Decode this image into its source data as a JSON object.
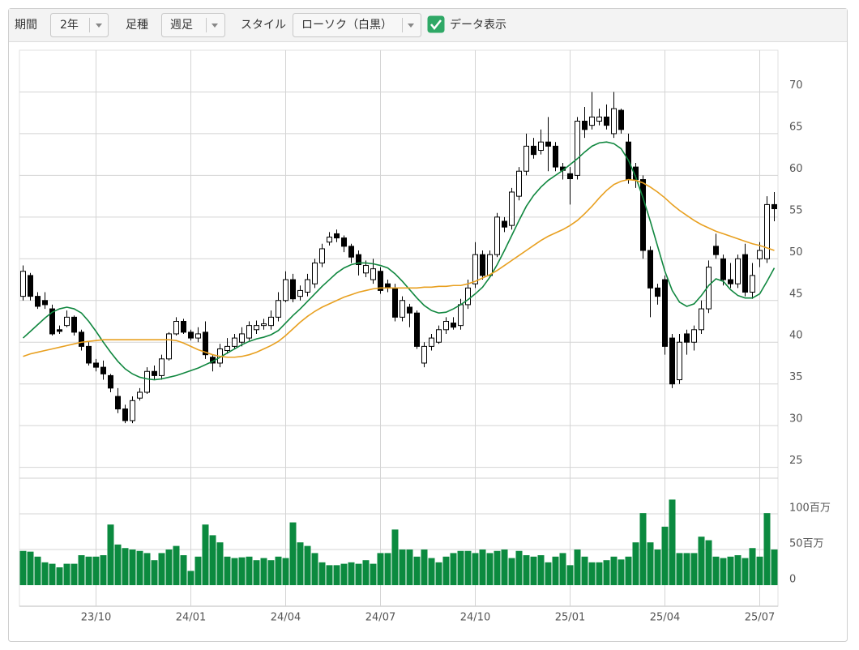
{
  "toolbar": {
    "period_label": "期間",
    "period_value": "2年",
    "interval_label": "足種",
    "interval_value": "週足",
    "style_label": "スタイル",
    "style_value": "ローソク（白黒）",
    "data_display": "データ表示",
    "data_display_checked": true
  },
  "chart_data": [
    {
      "type": "candlestick",
      "up_color": "#ffffff",
      "down_color": "#000000",
      "grid": true,
      "ylim": [
        23.7,
        75
      ],
      "yticks": [
        25,
        30,
        35,
        40,
        45,
        50,
        55,
        60,
        65,
        70
      ],
      "open": [
        45.5,
        48.0,
        45.5,
        45.0,
        44.0,
        41.5,
        42.0,
        43.0,
        41.2,
        39.5,
        37.5,
        37.0,
        36.0,
        33.5,
        32.0,
        30.6,
        33.3,
        34.0,
        36.5,
        36.0,
        38.0,
        41.0,
        42.5,
        41.2,
        40.5,
        41.2,
        38.2,
        37.5,
        39.0,
        39.5,
        40.0,
        40.5,
        41.5,
        42.0,
        42.0,
        43.0,
        45.0,
        47.5,
        45.5,
        46.0,
        47.0,
        49.5,
        52.0,
        53.0,
        52.5,
        51.5,
        50.5,
        48.3,
        47.5,
        48.5,
        47.0,
        46.5,
        43.0,
        44.2,
        43.5,
        37.5,
        39.5,
        40.0,
        41.5,
        42.3,
        42.0,
        44.5,
        47.0,
        50.5,
        48.0,
        50.5,
        54.5,
        54.0,
        57.5,
        60.5,
        63.5,
        63.0,
        64.0,
        63.5,
        61.0,
        60.2,
        60.0,
        66.5,
        66.0,
        66.5,
        67.0,
        65.0,
        67.8,
        64.0,
        61.0,
        59.5,
        51.0,
        46.5,
        47.5,
        40.5,
        35.5,
        41.0,
        40.0,
        41.5,
        44.0,
        51.5,
        50.0,
        47.5,
        47.0,
        50.5,
        46.0,
        50.0,
        50.0,
        56.5
      ],
      "high": [
        49.2,
        48.3,
        46.0,
        46.0,
        44.5,
        42.0,
        43.8,
        43.2,
        41.5,
        40.0,
        38.0,
        37.8,
        36.2,
        34.5,
        32.5,
        33.5,
        34.5,
        37.0,
        37.2,
        38.5,
        41.2,
        43.0,
        42.8,
        41.5,
        41.8,
        42.5,
        38.5,
        39.8,
        40.5,
        41.0,
        41.8,
        42.5,
        42.6,
        42.8,
        43.8,
        46.0,
        48.5,
        48.2,
        46.8,
        48.2,
        50.0,
        51.8,
        53.2,
        53.5,
        52.8,
        51.8,
        51.0,
        49.8,
        50.0,
        49.0,
        47.5,
        47.0,
        45.5,
        44.6,
        43.8,
        40.0,
        41.0,
        42.0,
        43.0,
        43.0,
        45.2,
        47.5,
        52.0,
        51.0,
        51.0,
        55.5,
        55.0,
        58.5,
        61.0,
        65.0,
        64.5,
        65.5,
        67.0,
        64.0,
        61.5,
        61.0,
        67.0,
        68.2,
        70.0,
        68.0,
        68.5,
        70.0,
        68.0,
        65.0,
        61.5,
        60.0,
        51.5,
        47.0,
        48.0,
        41.0,
        41.0,
        41.5,
        42.0,
        45.0,
        49.8,
        53.0,
        50.5,
        49.5,
        50.5,
        51.8,
        49.5,
        52.0,
        57.5,
        58.0
      ],
      "low": [
        45.0,
        45.0,
        44.0,
        44.0,
        40.8,
        41.0,
        41.8,
        40.8,
        39.0,
        37.2,
        36.5,
        35.5,
        34.0,
        31.5,
        30.3,
        30.3,
        33.0,
        33.8,
        35.5,
        35.5,
        37.8,
        40.8,
        41.0,
        40.2,
        40.0,
        38.0,
        36.5,
        37.0,
        38.6,
        39.2,
        39.5,
        40.2,
        41.0,
        41.5,
        41.5,
        42.5,
        44.8,
        44.8,
        45.0,
        45.5,
        46.5,
        49.0,
        51.6,
        52.0,
        50.8,
        49.5,
        48.0,
        47.8,
        47.0,
        45.8,
        46.0,
        42.5,
        42.5,
        41.8,
        39.2,
        37.0,
        39.0,
        39.8,
        41.0,
        41.5,
        41.5,
        44.0,
        46.5,
        47.5,
        47.8,
        50.2,
        53.2,
        53.5,
        57.0,
        60.0,
        62.0,
        62.5,
        60.5,
        60.5,
        59.5,
        56.5,
        59.5,
        64.5,
        65.5,
        66.0,
        65.5,
        64.5,
        65.0,
        59.0,
        58.5,
        50.0,
        43.0,
        44.5,
        38.5,
        34.5,
        35.0,
        38.5,
        39.0,
        41.0,
        43.5,
        50.0,
        46.8,
        46.5,
        46.5,
        45.5,
        45.2,
        49.0,
        49.5,
        54.5
      ],
      "close": [
        48.5,
        45.5,
        44.3,
        44.5,
        41.0,
        41.3,
        43.0,
        41.2,
        39.5,
        37.5,
        37.0,
        36.2,
        34.5,
        32.0,
        30.6,
        33.0,
        34.0,
        36.5,
        36.0,
        38.0,
        41.0,
        42.5,
        41.2,
        40.5,
        41.0,
        38.5,
        37.5,
        39.2,
        39.5,
        40.5,
        41.0,
        42.0,
        42.0,
        42.2,
        43.0,
        45.0,
        47.5,
        45.2,
        46.2,
        47.5,
        49.5,
        51.2,
        52.6,
        52.5,
        51.5,
        50.2,
        49.3,
        49.2,
        48.8,
        46.2,
        46.5,
        43.0,
        45.0,
        43.5,
        39.5,
        39.5,
        40.5,
        41.5,
        42.5,
        41.8,
        44.5,
        46.5,
        50.5,
        48.0,
        50.5,
        55.0,
        53.8,
        58.0,
        60.5,
        63.5,
        62.5,
        64.0,
        63.5,
        61.0,
        60.6,
        59.6,
        66.5,
        65.5,
        67.0,
        67.0,
        66.0,
        68.0,
        65.5,
        59.5,
        59.5,
        51.0,
        46.5,
        45.5,
        39.5,
        35.0,
        40.0,
        40.0,
        41.5,
        44.0,
        49.0,
        50.5,
        47.5,
        47.0,
        50.0,
        46.0,
        48.0,
        51.0,
        56.5,
        56.0
      ],
      "series": [
        {
          "type": "line",
          "color": "#10873f",
          "values": [
            40.5,
            41.3,
            42.1,
            42.9,
            43.6,
            44.0,
            44.2,
            44.0,
            43.5,
            42.5,
            41.3,
            40.0,
            38.8,
            37.7,
            36.8,
            36.2,
            35.8,
            35.6,
            35.5,
            35.6,
            35.8,
            36.0,
            36.3,
            36.6,
            36.9,
            37.3,
            37.7,
            38.2,
            38.7,
            39.2,
            39.7,
            40.1,
            40.4,
            40.6,
            40.9,
            41.4,
            42.3,
            43.2,
            44.0,
            44.9,
            45.8,
            46.7,
            47.5,
            48.3,
            48.9,
            49.3,
            49.5,
            49.5,
            49.4,
            49.2,
            48.9,
            48.2,
            47.3,
            46.3,
            45.3,
            44.4,
            43.8,
            43.5,
            43.6,
            44.0,
            44.5,
            45.1,
            45.8,
            46.6,
            47.8,
            49.3,
            51.0,
            52.8,
            54.6,
            56.3,
            57.6,
            58.6,
            59.4,
            60.0,
            60.6,
            61.3,
            62.0,
            62.8,
            63.5,
            63.9,
            64.0,
            63.8,
            63.2,
            61.8,
            59.8,
            57.3,
            54.5,
            51.5,
            48.5,
            46.2,
            44.8,
            44.3,
            44.6,
            45.6,
            46.8,
            47.6,
            47.3,
            46.3,
            45.6,
            45.3,
            45.3,
            45.8,
            47.3,
            48.9
          ]
        },
        {
          "type": "line",
          "color": "#e8a020",
          "values": [
            38.3,
            38.6,
            38.8,
            39.0,
            39.2,
            39.4,
            39.6,
            39.8,
            40.0,
            40.1,
            40.2,
            40.3,
            40.3,
            40.3,
            40.3,
            40.3,
            40.3,
            40.3,
            40.3,
            40.3,
            40.3,
            40.2,
            39.9,
            39.5,
            39.1,
            38.8,
            38.5,
            38.3,
            38.2,
            38.2,
            38.3,
            38.5,
            38.8,
            39.2,
            39.6,
            40.1,
            40.8,
            41.6,
            42.4,
            43.1,
            43.7,
            44.2,
            44.6,
            45.0,
            45.4,
            45.7,
            46.0,
            46.2,
            46.4,
            46.5,
            46.5,
            46.5,
            46.5,
            46.5,
            46.5,
            46.6,
            46.6,
            46.7,
            46.7,
            46.8,
            46.8,
            47.0,
            47.3,
            47.7,
            48.1,
            48.6,
            49.2,
            49.8,
            50.4,
            51.0,
            51.6,
            52.2,
            52.7,
            53.1,
            53.5,
            54.0,
            54.6,
            55.4,
            56.3,
            57.3,
            58.2,
            58.9,
            59.3,
            59.5,
            59.4,
            59.1,
            58.6,
            58.0,
            57.3,
            56.5,
            55.8,
            55.2,
            54.6,
            54.1,
            53.7,
            53.3,
            53.0,
            52.7,
            52.4,
            52.1,
            51.8,
            51.6,
            51.3,
            51.0
          ]
        }
      ]
    },
    {
      "type": "bar",
      "color": "#0b8a3f",
      "grid": true,
      "ylim": [
        0,
        150
      ],
      "yticks": [
        0,
        {
          "value": 50,
          "label": "50百万"
        },
        {
          "value": 100,
          "label": "100百万"
        }
      ],
      "categories": [
        null,
        null,
        null,
        null,
        null,
        null,
        null,
        null,
        null,
        null,
        "23/10",
        null,
        null,
        null,
        null,
        null,
        null,
        null,
        null,
        null,
        null,
        null,
        null,
        "24/01",
        null,
        null,
        null,
        null,
        null,
        null,
        null,
        null,
        null,
        null,
        null,
        null,
        "24/04",
        null,
        null,
        null,
        null,
        null,
        null,
        null,
        null,
        null,
        null,
        null,
        null,
        "24/07",
        null,
        null,
        null,
        null,
        null,
        null,
        null,
        null,
        null,
        null,
        null,
        null,
        "24/10",
        null,
        null,
        null,
        null,
        null,
        null,
        null,
        null,
        null,
        null,
        null,
        null,
        "25/01",
        null,
        null,
        null,
        null,
        null,
        null,
        null,
        null,
        null,
        null,
        null,
        null,
        "25/04",
        null,
        null,
        null,
        null,
        null,
        null,
        null,
        null,
        null,
        null,
        null,
        null,
        "25/07",
        null,
        null
      ],
      "values": [
        48,
        47,
        40,
        32,
        30,
        25,
        30,
        30,
        42,
        40,
        40,
        42,
        85,
        57,
        52,
        50,
        48,
        45,
        35,
        45,
        50,
        55,
        42,
        20,
        40,
        85,
        70,
        60,
        40,
        38,
        39,
        40,
        35,
        38,
        35,
        40,
        38,
        88,
        60,
        55,
        45,
        32,
        28,
        28,
        30,
        32,
        30,
        35,
        30,
        45,
        45,
        78,
        50,
        50,
        40,
        50,
        38,
        32,
        40,
        45,
        48,
        48,
        45,
        50,
        45,
        48,
        50,
        38,
        48,
        42,
        40,
        42,
        32,
        40,
        45,
        28,
        50,
        40,
        32,
        32,
        35,
        40,
        36,
        40,
        60,
        101,
        60,
        50,
        82,
        120,
        45,
        45,
        45,
        68,
        63,
        40,
        38,
        40,
        42,
        38,
        52,
        40,
        101,
        50
      ]
    }
  ]
}
